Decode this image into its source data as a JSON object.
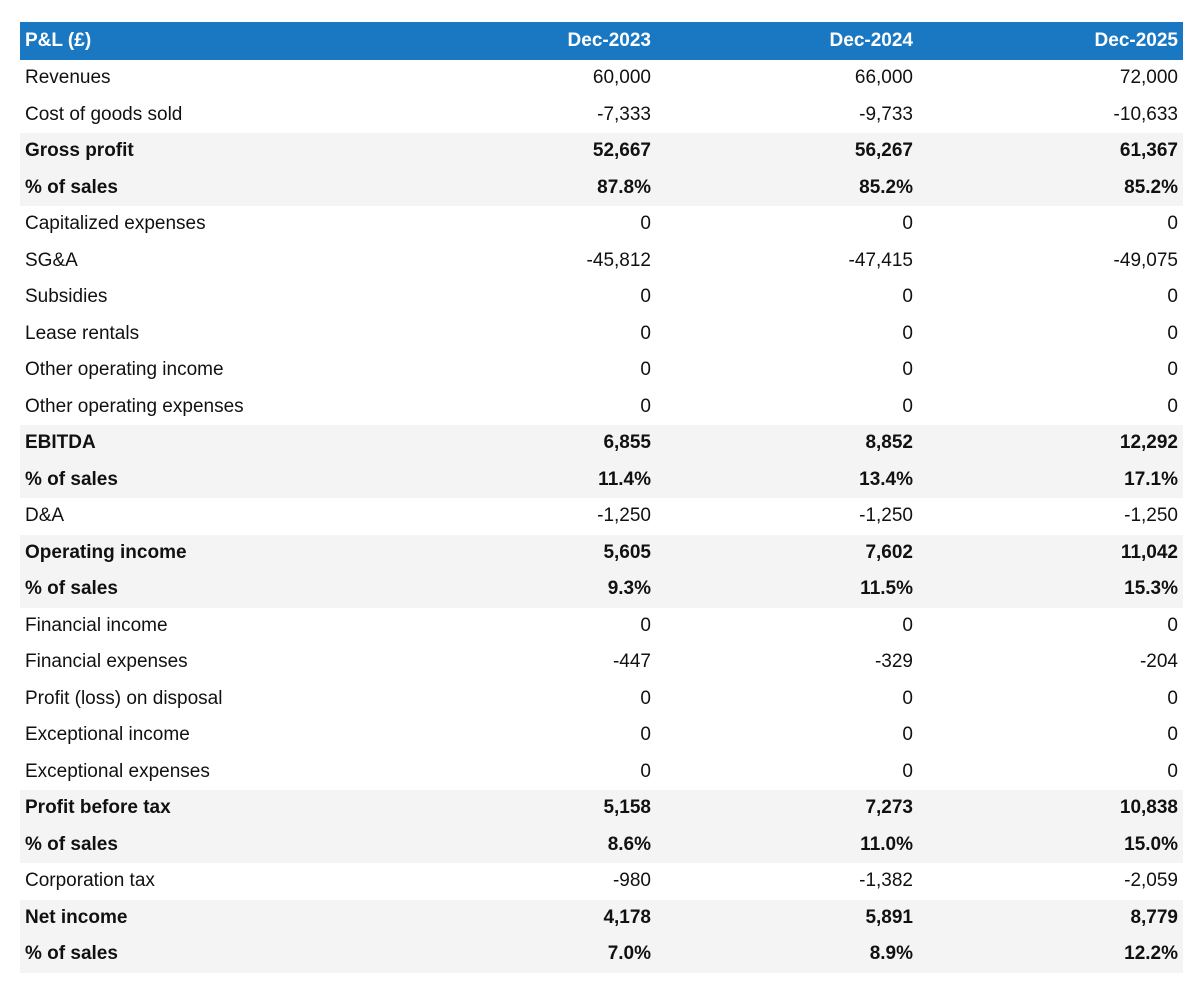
{
  "table": {
    "header": [
      "P&L (£)",
      "Dec-2023",
      "Dec-2024",
      "Dec-2025"
    ],
    "rows": [
      {
        "label": "Revenues",
        "values": [
          "60,000",
          "66,000",
          "72,000"
        ]
      },
      {
        "label": "Cost of goods sold",
        "values": [
          "-7,333",
          "-9,733",
          "-10,633"
        ]
      },
      {
        "label": "Gross profit",
        "values": [
          "52,667",
          "56,267",
          "61,367"
        ],
        "bold": true
      },
      {
        "label": "% of sales",
        "values": [
          "87.8%",
          "85.2%",
          "85.2%"
        ],
        "bold": true
      },
      {
        "label": "Capitalized expenses",
        "values": [
          "0",
          "0",
          "0"
        ]
      },
      {
        "label": "SG&A",
        "values": [
          "-45,812",
          "-47,415",
          "-49,075"
        ]
      },
      {
        "label": "Subsidies",
        "values": [
          "0",
          "0",
          "0"
        ]
      },
      {
        "label": "Lease rentals",
        "values": [
          "0",
          "0",
          "0"
        ]
      },
      {
        "label": "Other operating income",
        "values": [
          "0",
          "0",
          "0"
        ]
      },
      {
        "label": "Other operating expenses",
        "values": [
          "0",
          "0",
          "0"
        ]
      },
      {
        "label": "EBITDA",
        "values": [
          "6,855",
          "8,852",
          "12,292"
        ],
        "bold": true
      },
      {
        "label": "% of sales",
        "values": [
          "11.4%",
          "13.4%",
          "17.1%"
        ],
        "bold": true
      },
      {
        "label": "D&A",
        "values": [
          "-1,250",
          "-1,250",
          "-1,250"
        ]
      },
      {
        "label": "Operating income",
        "values": [
          "5,605",
          "7,602",
          "11,042"
        ],
        "bold": true
      },
      {
        "label": "% of sales",
        "values": [
          "9.3%",
          "11.5%",
          "15.3%"
        ],
        "bold": true
      },
      {
        "label": "Financial income",
        "values": [
          "0",
          "0",
          "0"
        ]
      },
      {
        "label": "Financial expenses",
        "values": [
          "-447",
          "-329",
          "-204"
        ]
      },
      {
        "label": "Profit (loss) on disposal",
        "values": [
          "0",
          "0",
          "0"
        ]
      },
      {
        "label": "Exceptional income",
        "values": [
          "0",
          "0",
          "0"
        ]
      },
      {
        "label": "Exceptional expenses",
        "values": [
          "0",
          "0",
          "0"
        ]
      },
      {
        "label": "Profit before tax",
        "values": [
          "5,158",
          "7,273",
          "10,838"
        ],
        "bold": true
      },
      {
        "label": "% of sales",
        "values": [
          "8.6%",
          "11.0%",
          "15.0%"
        ],
        "bold": true
      },
      {
        "label": "Corporation tax",
        "values": [
          "-980",
          "-1,382",
          "-2,059"
        ]
      },
      {
        "label": "Net income",
        "values": [
          "4,178",
          "5,891",
          "8,779"
        ],
        "bold": true
      },
      {
        "label": "% of sales",
        "values": [
          "7.0%",
          "8.9%",
          "12.2%"
        ],
        "bold": true
      }
    ]
  }
}
